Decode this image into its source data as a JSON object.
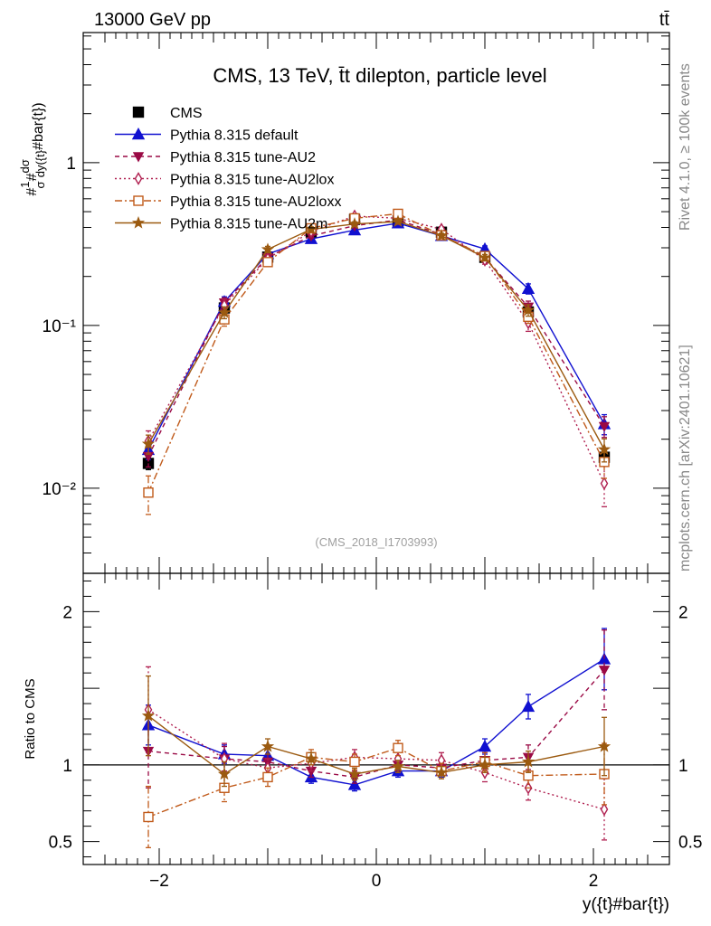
{
  "header": {
    "energy_label": "13000 GeV pp",
    "process_label": "tt̄"
  },
  "side_labels": {
    "rivet": "Rivet 4.1.0, ≥ 100k events",
    "mcplots": "mcplots.cern.ch [arXiv:2401.10621]"
  },
  "chart_data": [
    {
      "type": "line",
      "panel": "main",
      "title": "CMS, 13 TeV, t̄t dilepton, particle level",
      "watermark": "(CMS_2018_I1703993)",
      "ylabel": "#frac{1}{σ}#frac{dσ}{dy({t}#bar{t})}",
      "yscale": "log",
      "xlim": [
        -2.7,
        2.7
      ],
      "ylim": [
        0.003,
        6.3
      ],
      "ytick_labels": [
        {
          "value": 1,
          "label": "1"
        },
        {
          "value": 0.1,
          "label": "10⁻¹"
        },
        {
          "value": 0.01,
          "label": "10⁻²"
        }
      ],
      "legend_position": "top-left",
      "x": [
        -2.1,
        -1.4,
        -1.0,
        -0.6,
        -0.2,
        0.2,
        0.6,
        1.0,
        1.4,
        2.1
      ],
      "series": [
        {
          "name": "CMS",
          "color": "#000000",
          "marker": "square-filled",
          "dash": "none",
          "values": [
            0.0142,
            0.128,
            0.263,
            0.375,
            0.448,
            0.438,
            0.374,
            0.262,
            0.121,
            0.0155
          ],
          "errors": [
            0.0012,
            0.006,
            0.009,
            0.009,
            0.01,
            0.01,
            0.009,
            0.009,
            0.006,
            0.0012
          ]
        },
        {
          "name": "Pythia 8.315 default",
          "color": "#1010d0",
          "marker": "triangle-up-filled",
          "dash": "none",
          "values": [
            0.0172,
            0.14,
            0.275,
            0.34,
            0.385,
            0.425,
            0.355,
            0.295,
            0.168,
            0.0248
          ],
          "errors": [
            0.0022,
            0.01,
            0.012,
            0.012,
            0.012,
            0.013,
            0.012,
            0.013,
            0.012,
            0.0035
          ]
        },
        {
          "name": "Pythia 8.315 tune-AU2",
          "color": "#9a0a45",
          "marker": "triangle-down-filled",
          "dash": "5,4",
          "values": [
            0.0157,
            0.138,
            0.262,
            0.355,
            0.41,
            0.445,
            0.362,
            0.262,
            0.13,
            0.024
          ],
          "errors": [
            0.0022,
            0.01,
            0.012,
            0.012,
            0.012,
            0.013,
            0.012,
            0.012,
            0.011,
            0.0035
          ]
        },
        {
          "name": "Pythia 8.315 tune-AU2lox",
          "color": "#b02050",
          "marker": "diamond-open",
          "dash": "2,3",
          "values": [
            0.0195,
            0.133,
            0.257,
            0.378,
            0.47,
            0.455,
            0.39,
            0.252,
            0.104,
            0.0107
          ],
          "errors": [
            0.003,
            0.012,
            0.014,
            0.014,
            0.015,
            0.015,
            0.014,
            0.014,
            0.012,
            0.003
          ]
        },
        {
          "name": "Pythia 8.315 tune-AU2loxx",
          "color": "#c05a1a",
          "marker": "square-open",
          "dash": "8,3,2,3",
          "values": [
            0.0094,
            0.109,
            0.245,
            0.395,
            0.455,
            0.485,
            0.358,
            0.267,
            0.113,
            0.0145
          ],
          "errors": [
            0.0025,
            0.01,
            0.013,
            0.014,
            0.015,
            0.015,
            0.014,
            0.013,
            0.01,
            0.003
          ]
        },
        {
          "name": "Pythia 8.315 tune-AU2m",
          "color": "#9b5a10",
          "marker": "star-filled",
          "dash": "none",
          "values": [
            0.0187,
            0.12,
            0.293,
            0.39,
            0.42,
            0.435,
            0.356,
            0.261,
            0.124,
            0.0173
          ],
          "errors": [
            0.0025,
            0.01,
            0.013,
            0.013,
            0.013,
            0.014,
            0.012,
            0.012,
            0.01,
            0.0028
          ]
        }
      ]
    },
    {
      "type": "line",
      "panel": "ratio",
      "ylabel": "Ratio to CMS",
      "xlabel": "y({t}#bar{t})",
      "yscale": "linear",
      "xlim": [
        -2.7,
        2.7
      ],
      "ylim": [
        0.35,
        2.25
      ],
      "ytick_labels": [
        {
          "value": 2,
          "label": "2"
        },
        {
          "value": 1,
          "label": "1"
        },
        {
          "value": 0.5,
          "label": "0.5"
        }
      ],
      "xtick_labels": [
        {
          "value": -2,
          "label": "−2"
        },
        {
          "value": 0,
          "label": "0"
        },
        {
          "value": 2,
          "label": "2"
        }
      ],
      "reference_line": 1,
      "x": [
        -2.1,
        -1.4,
        -1.0,
        -0.6,
        -0.2,
        0.2,
        0.6,
        1.0,
        1.4,
        2.1
      ],
      "series": [
        {
          "name": "Pythia 8.315 default",
          "color": "#1010d0",
          "marker": "triangle-up-filled",
          "dash": "none",
          "values": [
            1.26,
            1.07,
            1.06,
            0.92,
            0.87,
            0.96,
            0.96,
            1.12,
            1.38,
            1.69
          ],
          "errors": [
            0.13,
            0.06,
            0.05,
            0.04,
            0.04,
            0.04,
            0.04,
            0.05,
            0.08,
            0.2
          ]
        },
        {
          "name": "Pythia 8.315 tune-AU2",
          "color": "#9a0a45",
          "marker": "triangle-down-filled",
          "dash": "5,4",
          "values": [
            1.09,
            1.04,
            1.02,
            0.96,
            0.92,
            1.0,
            0.98,
            1.03,
            1.05,
            1.62
          ],
          "errors": [
            0.24,
            0.08,
            0.05,
            0.04,
            0.04,
            0.04,
            0.04,
            0.05,
            0.08,
            0.26
          ]
        },
        {
          "name": "Pythia 8.315 tune-AU2lox",
          "color": "#b02050",
          "marker": "diamond-open",
          "dash": "2,3",
          "values": [
            1.36,
            1.04,
            0.98,
            1.01,
            1.05,
            1.04,
            1.03,
            0.95,
            0.85,
            0.71
          ],
          "errors": [
            0.28,
            0.1,
            0.06,
            0.05,
            0.05,
            0.05,
            0.05,
            0.06,
            0.08,
            0.2
          ]
        },
        {
          "name": "Pythia 8.315 tune-AU2loxx",
          "color": "#c05a1a",
          "marker": "square-open",
          "dash": "8,3,2,3",
          "values": [
            0.66,
            0.85,
            0.92,
            1.05,
            1.02,
            1.11,
            0.96,
            1.02,
            0.93,
            0.94
          ],
          "errors": [
            0.2,
            0.09,
            0.06,
            0.05,
            0.05,
            0.05,
            0.05,
            0.06,
            0.08,
            0.2
          ]
        },
        {
          "name": "Pythia 8.315 tune-AU2m",
          "color": "#9b5a10",
          "marker": "star-filled",
          "dash": "none",
          "values": [
            1.32,
            0.94,
            1.12,
            1.04,
            0.94,
            0.99,
            0.95,
            1.0,
            1.02,
            1.12
          ],
          "errors": [
            0.26,
            0.08,
            0.05,
            0.04,
            0.04,
            0.04,
            0.04,
            0.05,
            0.07,
            0.19
          ]
        }
      ]
    }
  ]
}
